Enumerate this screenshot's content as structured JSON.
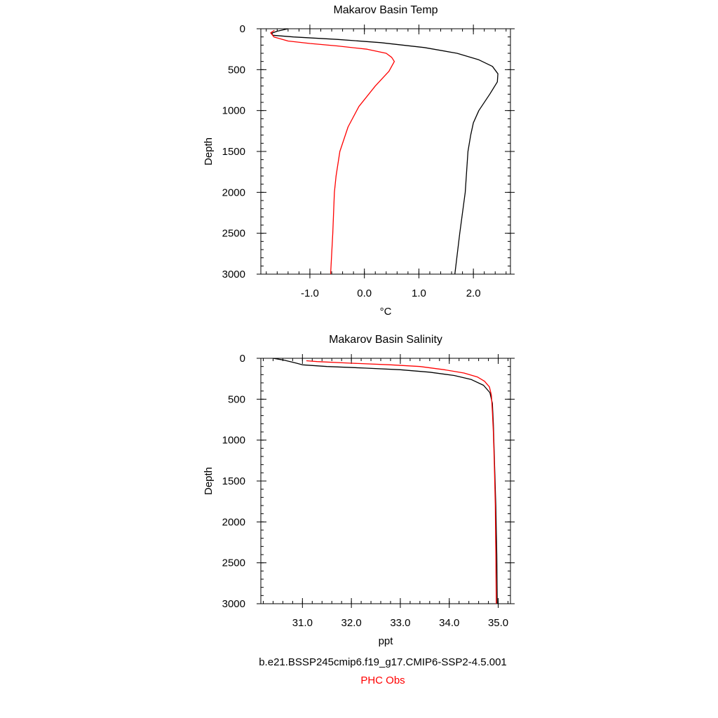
{
  "chart_data": [
    {
      "type": "line",
      "title": "Makarov Basin Temp",
      "xlabel": "°C",
      "ylabel": "Depth",
      "xlim": [
        -1.9,
        2.68
      ],
      "ylim": [
        3000,
        0
      ],
      "xticks": [
        -1.0,
        0.0,
        1.0,
        2.0
      ],
      "xtick_labels": [
        "-1.0",
        "0.0",
        "1.0",
        "2.0"
      ],
      "yticks": [
        0,
        500,
        1000,
        1500,
        2000,
        2500,
        3000
      ],
      "ytick_labels": [
        "0",
        "500",
        "1000",
        "1500",
        "2000",
        "2500",
        "3000"
      ],
      "grid": false,
      "series": [
        {
          "name": "b.e21.BSSP245cmip6.f19_g17.CMIP6-SSP2-4.5.001",
          "color": "#000000",
          "points": [
            [
              -1.4,
              0
            ],
            [
              -1.6,
              30
            ],
            [
              -1.7,
              55
            ],
            [
              -1.68,
              80
            ],
            [
              -1.3,
              100
            ],
            [
              -0.5,
              130
            ],
            [
              0.3,
              170
            ],
            [
              1.1,
              230
            ],
            [
              1.7,
              300
            ],
            [
              2.1,
              380
            ],
            [
              2.35,
              460
            ],
            [
              2.45,
              550
            ],
            [
              2.44,
              650
            ],
            [
              2.3,
              800
            ],
            [
              2.1,
              1000
            ],
            [
              2.0,
              1150
            ],
            [
              1.95,
              1300
            ],
            [
              1.9,
              1500
            ],
            [
              1.85,
              2000
            ],
            [
              1.75,
              2500
            ],
            [
              1.66,
              3000
            ]
          ]
        },
        {
          "name": "PHC Obs",
          "color": "#ff0000",
          "points": [
            [
              -1.65,
              20
            ],
            [
              -1.72,
              50
            ],
            [
              -1.66,
              100
            ],
            [
              -1.4,
              150
            ],
            [
              -1.0,
              180
            ],
            [
              -0.5,
              210
            ],
            [
              0.05,
              250
            ],
            [
              0.4,
              300
            ],
            [
              0.5,
              350
            ],
            [
              0.55,
              400
            ],
            [
              0.45,
              520
            ],
            [
              0.2,
              700
            ],
            [
              -0.1,
              950
            ],
            [
              -0.3,
              1200
            ],
            [
              -0.45,
              1500
            ],
            [
              -0.52,
              1800
            ],
            [
              -0.55,
              2000
            ],
            [
              -0.58,
              2500
            ],
            [
              -0.62,
              3000
            ]
          ]
        }
      ]
    },
    {
      "type": "line",
      "title": "Makarov Basin Salinity",
      "xlabel": "ppt",
      "ylabel": "Depth",
      "xlim": [
        30.15,
        35.25
      ],
      "ylim": [
        3000,
        0
      ],
      "xticks": [
        31.0,
        32.0,
        33.0,
        34.0,
        35.0
      ],
      "xtick_labels": [
        "31.0",
        "32.0",
        "33.0",
        "34.0",
        "35.0"
      ],
      "yticks": [
        0,
        500,
        1000,
        1500,
        2000,
        2500,
        3000
      ],
      "ytick_labels": [
        "0",
        "500",
        "1000",
        "1500",
        "2000",
        "2500",
        "3000"
      ],
      "grid": false,
      "series": [
        {
          "name": "b.e21.BSSP245cmip6.f19_g17.CMIP6-SSP2-4.5.001",
          "color": "#000000",
          "points": [
            [
              30.4,
              0
            ],
            [
              30.6,
              20
            ],
            [
              30.75,
              40
            ],
            [
              30.88,
              60
            ],
            [
              31.0,
              80
            ],
            [
              31.5,
              100
            ],
            [
              32.3,
              120
            ],
            [
              33.0,
              140
            ],
            [
              33.6,
              170
            ],
            [
              34.1,
              210
            ],
            [
              34.45,
              260
            ],
            [
              34.7,
              330
            ],
            [
              34.83,
              420
            ],
            [
              34.88,
              550
            ],
            [
              34.9,
              800
            ],
            [
              34.92,
              1200
            ],
            [
              34.95,
              1800
            ],
            [
              34.97,
              2400
            ],
            [
              34.98,
              3000
            ]
          ]
        },
        {
          "name": "PHC Obs",
          "color": "#ff0000",
          "points": [
            [
              31.08,
              30
            ],
            [
              31.3,
              40
            ],
            [
              32.0,
              60
            ],
            [
              32.8,
              80
            ],
            [
              33.4,
              100
            ],
            [
              33.9,
              140
            ],
            [
              34.3,
              180
            ],
            [
              34.58,
              230
            ],
            [
              34.72,
              280
            ],
            [
              34.82,
              350
            ],
            [
              34.86,
              450
            ],
            [
              34.88,
              650
            ],
            [
              34.9,
              900
            ],
            [
              34.92,
              1300
            ],
            [
              34.94,
              1800
            ],
            [
              34.95,
              2400
            ],
            [
              34.96,
              3000
            ]
          ]
        }
      ]
    }
  ],
  "legend": {
    "model": "b.e21.BSSP245cmip6.f19_g17.CMIP6-SSP2-4.5.001",
    "obs": "PHC Obs"
  }
}
